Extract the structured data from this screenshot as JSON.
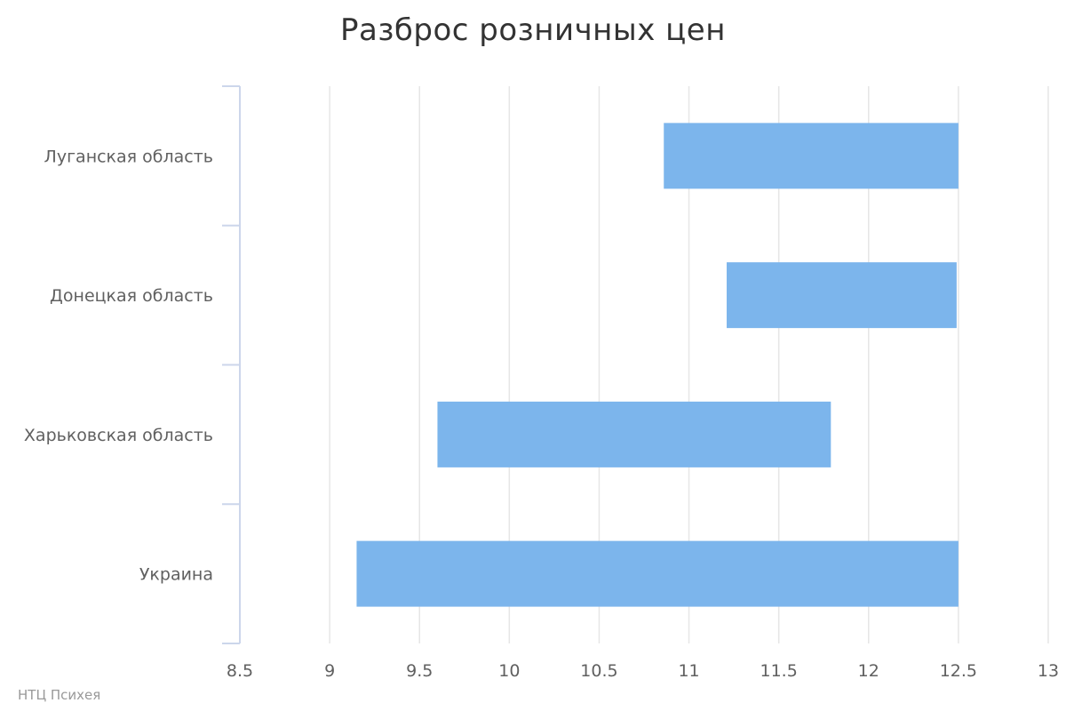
{
  "chart_data": {
    "type": "bar",
    "orientation": "horizontal",
    "subtype": "columnrange",
    "title": "Разброс розничных цен",
    "credits": "НТЦ Психея",
    "categories": [
      "Луганская область",
      "Донецкая область",
      "Харьковская область",
      "Украина"
    ],
    "series": [
      {
        "ranges": [
          [
            10.86,
            12.5
          ],
          [
            11.21,
            12.49
          ],
          [
            9.6,
            11.79
          ],
          [
            9.15,
            12.5
          ]
        ],
        "color": "#7cb5ec"
      }
    ],
    "xlim": [
      8.5,
      13
    ],
    "ticks": [
      "8.5",
      "9",
      "9.5",
      "10",
      "10.5",
      "11",
      "11.5",
      "12",
      "12.5",
      "13"
    ],
    "grid": true,
    "legend": "none",
    "colors": {
      "bar": "#7cb5ec",
      "grid": "#e6e6e6",
      "axis": "#ccd6eb",
      "title": "#333333",
      "label": "#606060"
    }
  }
}
